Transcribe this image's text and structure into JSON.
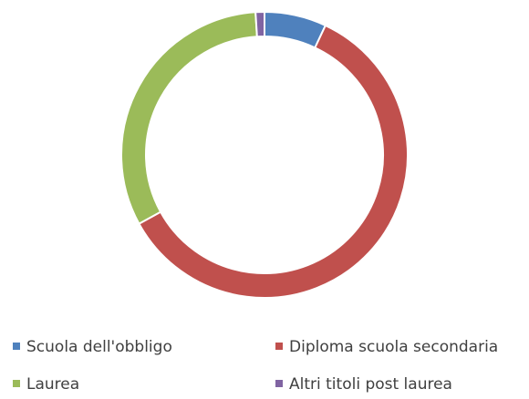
{
  "chart_data": {
    "type": "donut",
    "categories": [
      "Scuola dell'obbligo",
      "Diploma scuola secondaria",
      "Laurea",
      "Altri titoli post laurea"
    ],
    "values": [
      7,
      60,
      32,
      1
    ],
    "colors": [
      "#4f81bd",
      "#c0504d",
      "#9bbb59",
      "#8064a2"
    ],
    "legend": "bottom"
  }
}
